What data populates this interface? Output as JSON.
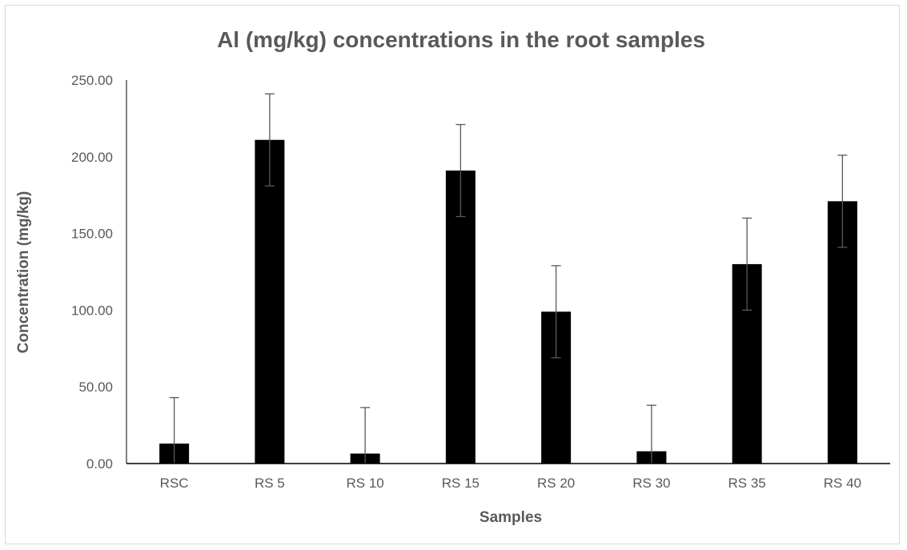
{
  "chart_data": {
    "type": "bar",
    "title": "Al (mg/kg) concentrations in the root samples",
    "xlabel": "Samples",
    "ylabel": "Concentration (mg/kg)",
    "categories": [
      "RSC",
      "RS 5",
      "RS 10",
      "RS 15",
      "RS 20",
      "RS 30",
      "RS 35",
      "RS 40"
    ],
    "values": [
      13.0,
      211.0,
      6.5,
      191.0,
      99.0,
      8.0,
      130.0,
      171.0
    ],
    "error_bars": [
      30.0,
      30.0,
      30.0,
      30.0,
      30.0,
      30.0,
      30.0,
      30.0
    ],
    "ylim": [
      0,
      250
    ],
    "yticks": [
      "0.00",
      "50.00",
      "100.00",
      "150.00",
      "200.00",
      "250.00"
    ],
    "ytick_values": [
      0,
      50,
      100,
      150,
      200,
      250
    ],
    "grid": false,
    "legend": "none",
    "colors": {
      "bar": "#000000",
      "error_bar": "#595959",
      "axis": "#000000",
      "text": "#595959"
    }
  }
}
